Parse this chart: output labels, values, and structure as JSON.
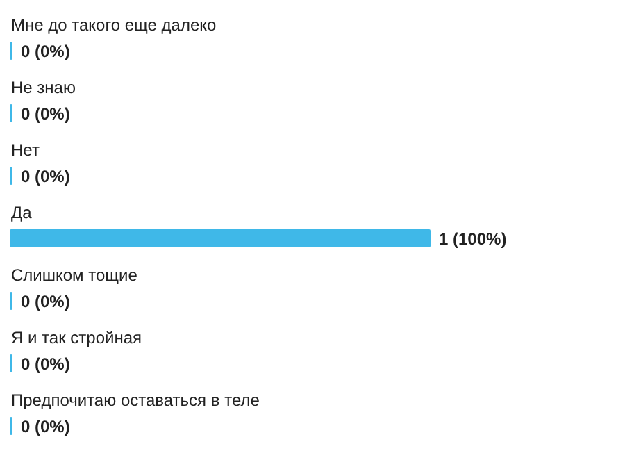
{
  "chart_data": {
    "type": "bar",
    "orientation": "horizontal",
    "categories": [
      "Мне до такого еще далеко",
      "Не знаю",
      "Нет",
      "Да",
      "Слишком тощие",
      "Я и так стройная",
      "Предпочитаю оставаться в теле"
    ],
    "values": [
      0,
      0,
      0,
      1,
      0,
      0,
      0
    ],
    "value_labels": [
      "0 (0%)",
      "0 (0%)",
      "0 (0%)",
      "1 (100%)",
      "0 (0%)",
      "0 (0%)",
      "0 (0%)"
    ],
    "color": "#3fb8e8"
  }
}
